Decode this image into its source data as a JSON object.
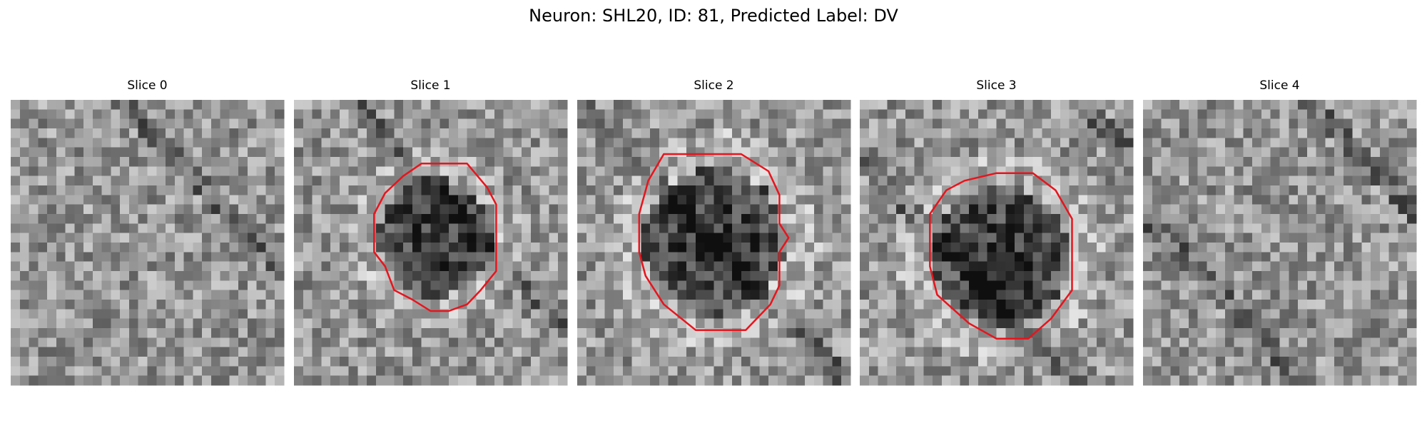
{
  "header": {
    "title": "Neuron: SHL20, ID: 81, Predicted Label: DV"
  },
  "panels": [
    {
      "title": "Slice 0"
    },
    {
      "title": "Slice 1"
    },
    {
      "title": "Slice 2"
    },
    {
      "title": "Slice 3"
    },
    {
      "title": "Slice 4"
    }
  ]
}
